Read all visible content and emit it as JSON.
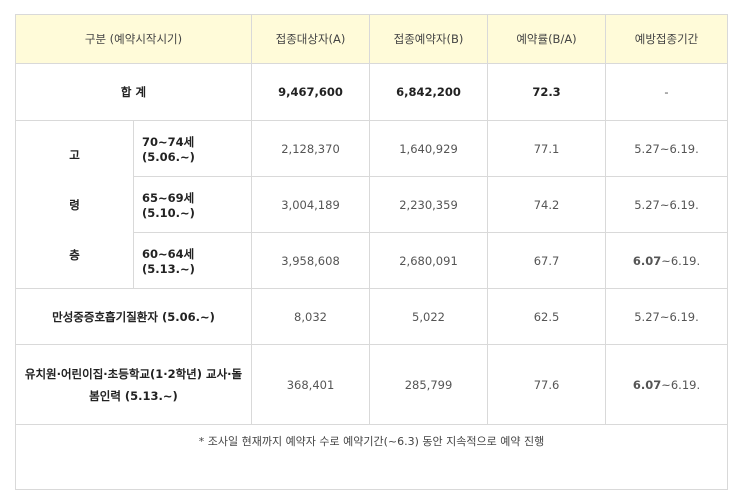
{
  "headers": {
    "category": "구분 (예약시작시기)",
    "target": "접종대상자(A)",
    "reserved": "접종예약자(B)",
    "rate": "예약률(B/A)",
    "period": "예방접종기간"
  },
  "total": {
    "label": "합 계",
    "target": "9,467,600",
    "reserved": "6,842,200",
    "rate": "72.3",
    "period": "-"
  },
  "elderly": {
    "group_chars": [
      "고",
      "령",
      "층"
    ],
    "rows": [
      {
        "label": "70~74세 (5.06.~)",
        "target": "2,128,370",
        "reserved": "1,640,929",
        "rate": "77.1",
        "period": "5.27~6.19."
      },
      {
        "label": "65~69세 (5.10.~)",
        "target": "3,004,189",
        "reserved": "2,230,359",
        "rate": "74.2",
        "period": "5.27~6.19."
      },
      {
        "label": "60~64세 (5.13.~)",
        "target": "3,958,608",
        "reserved": "2,680,091",
        "rate": "67.7",
        "period_bold": "6.07",
        "period_rest": "~6.19."
      }
    ]
  },
  "copd": {
    "label": "만성중증호흡기질환자 (5.06.~)",
    "target": "8,032",
    "reserved": "5,022",
    "rate": "62.5",
    "period": "5.27~6.19."
  },
  "teachers": {
    "label_line1": "유치원·어린이집·초등학교(1·2학년) 교사·돌",
    "label_line2": "봄인력 (5.13.~)",
    "target": "368,401",
    "reserved": "285,799",
    "rate": "77.6",
    "period_bold": "6.07",
    "period_rest": "~6.19."
  },
  "note": "* 조사일 현재까지 예약자 수로 예약기간(~6.3) 동안 지속적으로 예약 진행"
}
